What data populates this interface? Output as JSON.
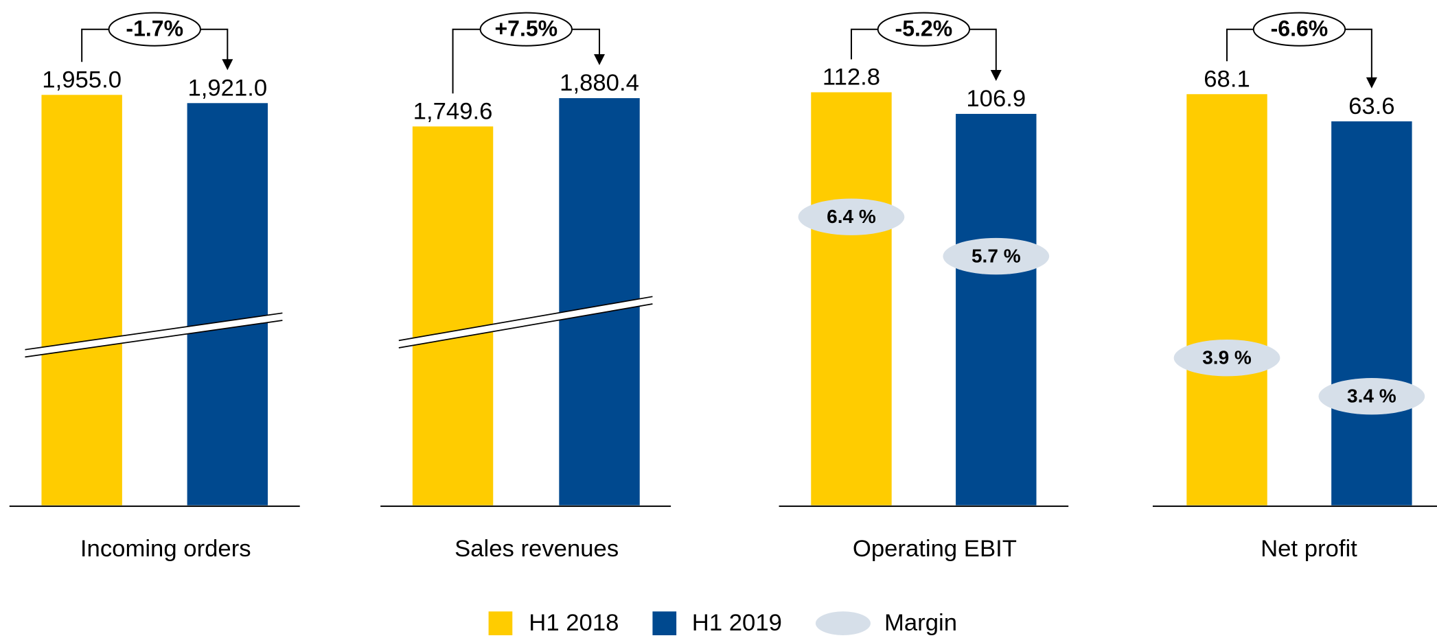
{
  "chart_data": [
    {
      "type": "bar",
      "title": "Incoming orders",
      "ylim": [
        260,
        2120
      ],
      "axis_break": true,
      "series": [
        {
          "name": "H1 2018",
          "color": "#ffcc00",
          "values": [
            1955.0
          ],
          "value_labels": [
            "1,955.0"
          ]
        },
        {
          "name": "H1 2019",
          "color": "#00498f",
          "values": [
            1921.0
          ],
          "value_labels": [
            "1,921.0"
          ]
        }
      ],
      "change": {
        "value": -1.7,
        "label": "-1.7%"
      }
    },
    {
      "type": "bar",
      "title": "Sales revenues",
      "ylim": [
        0,
        2080
      ],
      "axis_break": true,
      "series": [
        {
          "name": "H1 2018",
          "color": "#ffcc00",
          "values": [
            1749.6
          ],
          "value_labels": [
            "1,749.6"
          ]
        },
        {
          "name": "H1 2019",
          "color": "#00498f",
          "values": [
            1880.4
          ],
          "value_labels": [
            "1,880.4"
          ]
        }
      ],
      "change": {
        "value": 7.5,
        "label": "+7.5%"
      }
    },
    {
      "type": "bar",
      "title": "Operating EBIT",
      "ylim": [
        0,
        123
      ],
      "axis_break": false,
      "series": [
        {
          "name": "H1 2018",
          "color": "#ffcc00",
          "values": [
            112.8
          ],
          "value_labels": [
            "112.8"
          ]
        },
        {
          "name": "H1 2019",
          "color": "#00498f",
          "values": [
            106.9
          ],
          "value_labels": [
            "106.9"
          ]
        }
      ],
      "change": {
        "value": -5.2,
        "label": "-5.2%"
      },
      "margins": {
        "values": [
          6.4,
          5.7
        ],
        "value_labels": [
          "6.4 %",
          "5.7 %"
        ]
      }
    },
    {
      "type": "bar",
      "title": "Net profit",
      "ylim": [
        0,
        74.6
      ],
      "axis_break": false,
      "series": [
        {
          "name": "H1 2018",
          "color": "#ffcc00",
          "values": [
            68.1
          ],
          "value_labels": [
            "68.1"
          ]
        },
        {
          "name": "H1 2019",
          "color": "#00498f",
          "values": [
            63.6
          ],
          "value_labels": [
            "63.6"
          ]
        }
      ],
      "change": {
        "value": -6.6,
        "label": "-6.6%"
      },
      "margins": {
        "values": [
          3.9,
          3.4
        ],
        "value_labels": [
          "3.9 %",
          "3.4 %"
        ]
      }
    }
  ],
  "legend": {
    "margin": "Margin",
    "margin_color": "#d6dfe9"
  }
}
